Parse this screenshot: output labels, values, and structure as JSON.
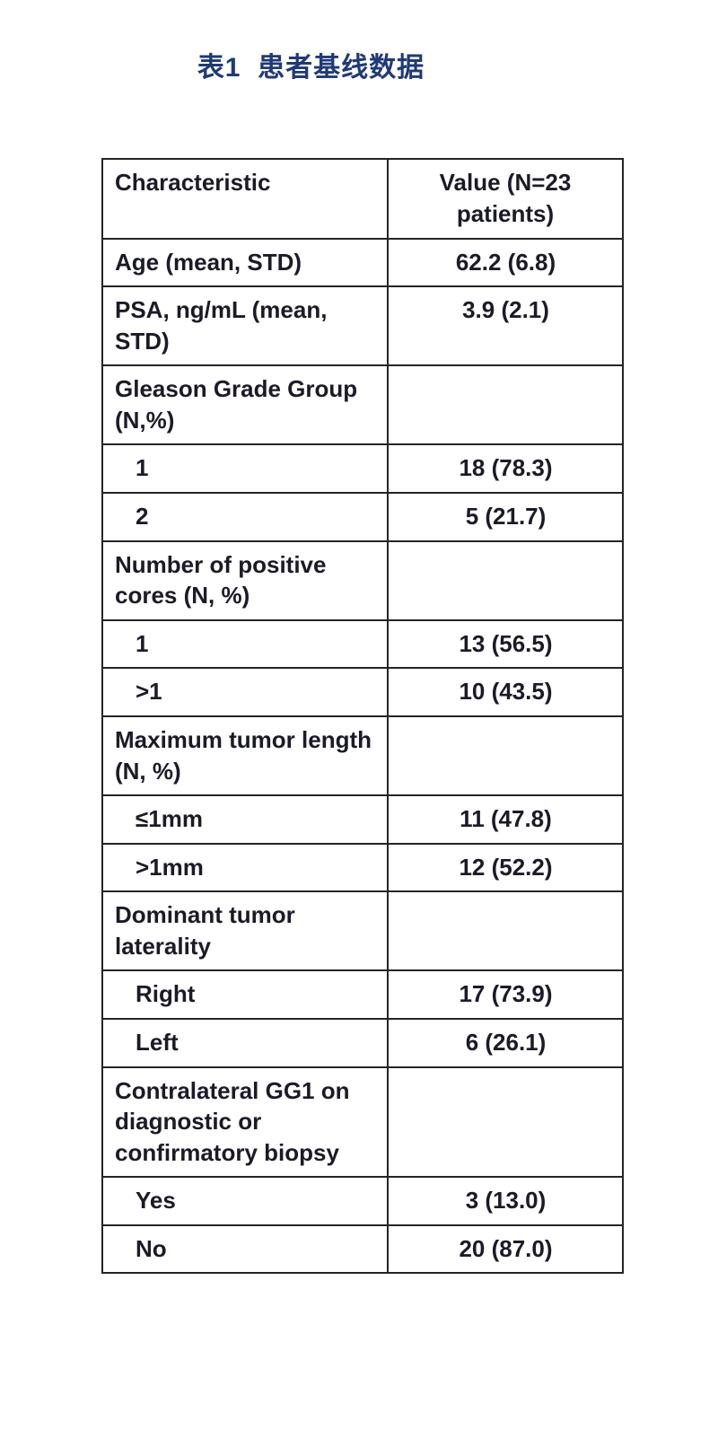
{
  "page": {
    "title": "表1  患者基线数据"
  },
  "table": {
    "columns": [
      "Characteristic",
      "Value (N=23 patients)"
    ],
    "rows": [
      {
        "label": "Age (mean, STD)",
        "value": "62.2 (6.8)",
        "indent": false
      },
      {
        "label": "PSA, ng/mL (mean, STD)",
        "value": "3.9 (2.1)",
        "indent": false
      },
      {
        "label": "Gleason Grade Group (N,%)",
        "value": "",
        "indent": false
      },
      {
        "label": "1",
        "value": "18 (78.3)",
        "indent": true
      },
      {
        "label": "2",
        "value": "5 (21.7)",
        "indent": true
      },
      {
        "label": "Number of positive cores (N, %)",
        "value": "",
        "indent": false
      },
      {
        "label": "1",
        "value": "13 (56.5)",
        "indent": true
      },
      {
        "label": ">1",
        "value": "10 (43.5)",
        "indent": true
      },
      {
        "label": "Maximum tumor length (N, %)",
        "value": "",
        "indent": false
      },
      {
        "label": "≤1mm",
        "value": "11 (47.8)",
        "indent": true
      },
      {
        "label": ">1mm",
        "value": "12 (52.2)",
        "indent": true
      },
      {
        "label": "Dominant tumor laterality",
        "value": "",
        "indent": false
      },
      {
        "label": "Right",
        "value": "17 (73.9)",
        "indent": true
      },
      {
        "label": "Left",
        "value": "6 (26.1)",
        "indent": true
      },
      {
        "label": "Contralateral GG1 on diagnostic or confirmatory biopsy",
        "value": "",
        "indent": false
      },
      {
        "label": "Yes",
        "value": "3 (13.0)",
        "indent": true
      },
      {
        "label": "No",
        "value": "20 (87.0)",
        "indent": true
      }
    ]
  }
}
